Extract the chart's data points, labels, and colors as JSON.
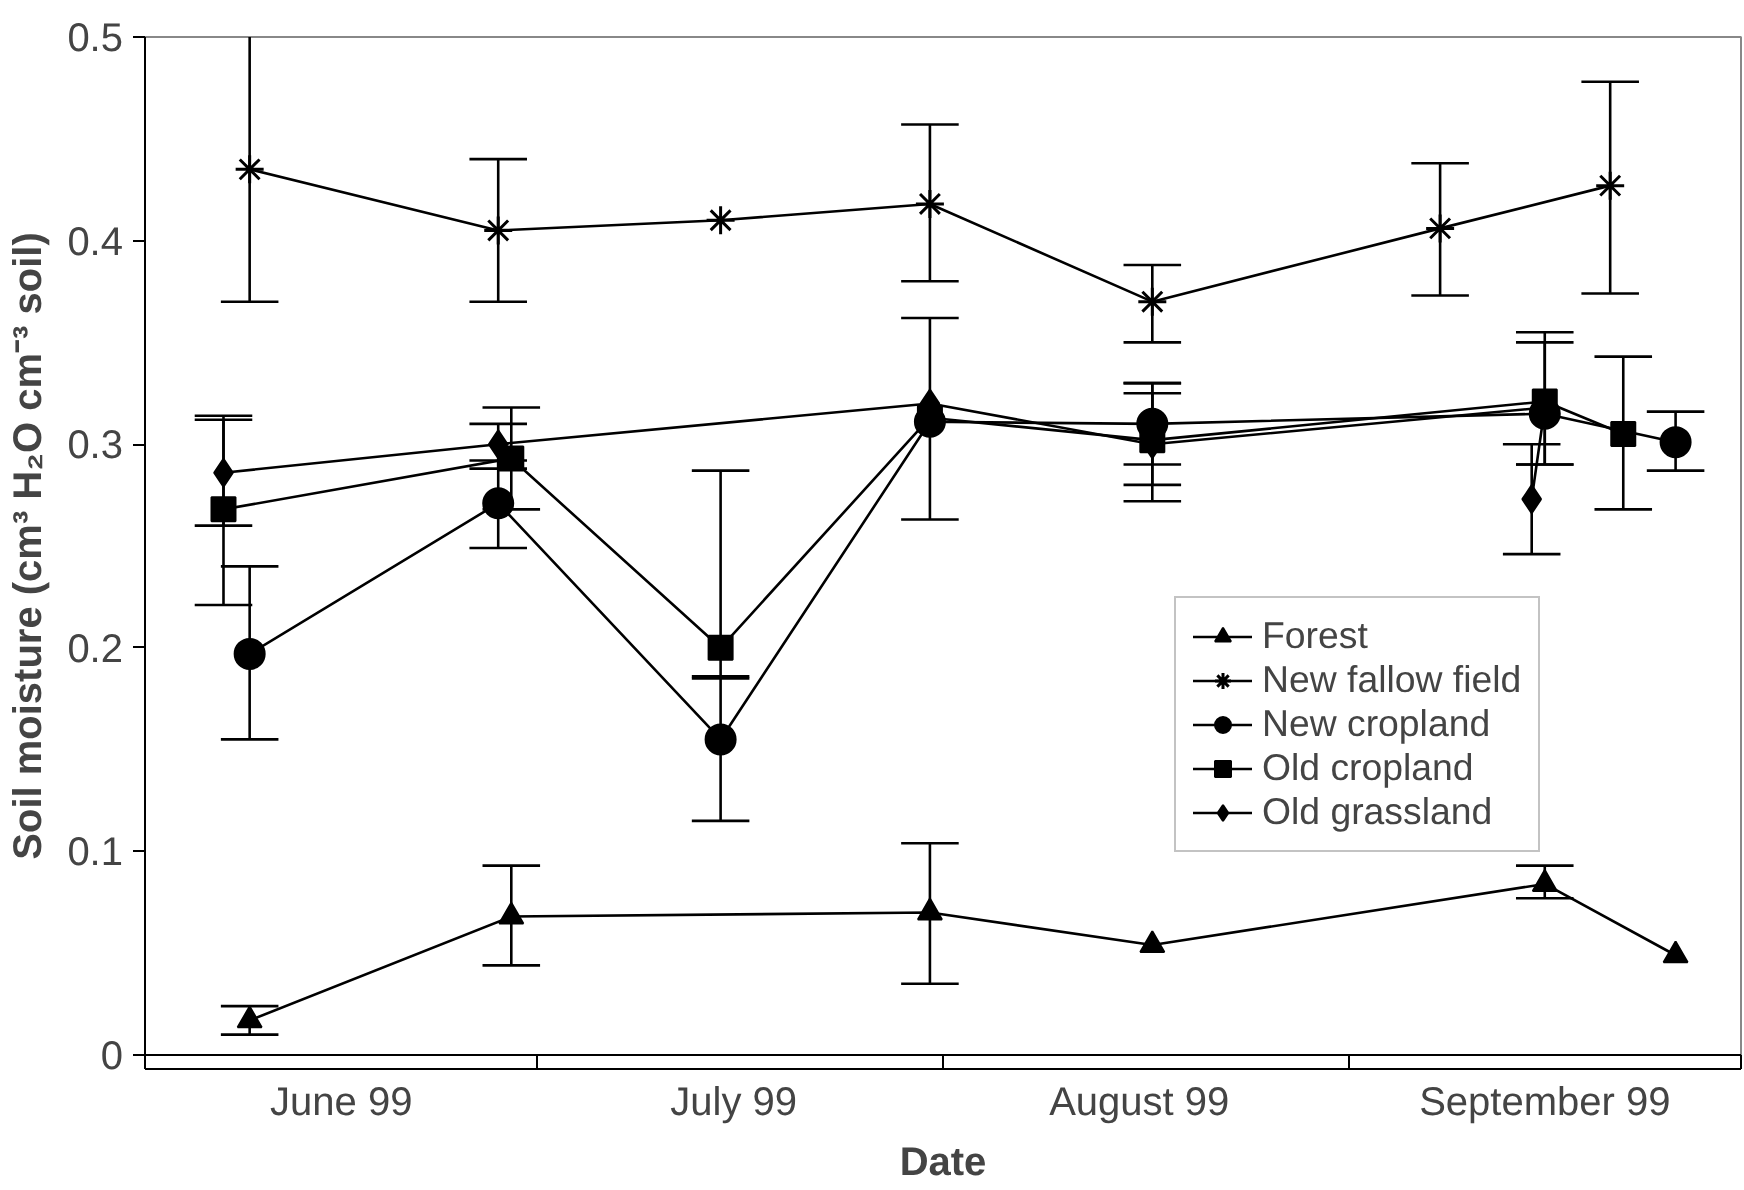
{
  "chart_data": {
    "type": "line",
    "xlabel": "Date",
    "ylabel": "Soil moisture (cm³ H₂O cm⁻³ soil)",
    "xlim": [
      "1999-06-01",
      "1999-10-01"
    ],
    "xticks": [
      {
        "value": "1999-06-01",
        "label": null
      },
      {
        "value": "1999-06-16",
        "label": "June 99"
      },
      {
        "value": "1999-07-01",
        "label": null
      },
      {
        "value": "1999-07-16",
        "label": "July 99"
      },
      {
        "value": "1999-08-01",
        "label": null
      },
      {
        "value": "1999-08-16",
        "label": "August 99"
      },
      {
        "value": "1999-09-01",
        "label": null
      },
      {
        "value": "1999-09-16",
        "label": "September 99"
      },
      {
        "value": "1999-10-01",
        "label": null
      }
    ],
    "ylim": [
      0,
      0.5
    ],
    "yticks": [
      0,
      0.1,
      0.2,
      0.3,
      0.4,
      0.5
    ],
    "grid": false,
    "legend": "right",
    "line_style": "solid",
    "series": [
      {
        "name": "Forest",
        "color": "#000000",
        "marker": "triangle",
        "x": [
          "1999-06-09",
          "1999-06-29",
          "1999-07-31",
          "1999-08-17",
          "1999-09-16",
          "1999-09-26"
        ],
        "values": [
          0.017,
          0.068,
          0.07,
          0.054,
          0.084,
          0.049
        ],
        "errors": [
          [
            0.01,
            0.024
          ],
          [
            0.044,
            0.093
          ],
          [
            0.035,
            0.104
          ],
          null,
          [
            0.077,
            0.093
          ],
          null
        ]
      },
      {
        "name": "New fallow field",
        "color": "#000000",
        "marker": "cross",
        "x": [
          "1999-06-09",
          "1999-06-28",
          "1999-07-15",
          "1999-07-31",
          "1999-08-17",
          "1999-09-08",
          "1999-09-21"
        ],
        "values": [
          0.435,
          0.405,
          0.41,
          0.418,
          0.37,
          0.406,
          0.427
        ],
        "errors": [
          [
            0.37,
            0.502
          ],
          [
            0.37,
            0.44
          ],
          null,
          [
            0.38,
            0.457
          ],
          [
            0.35,
            0.388
          ],
          [
            0.373,
            0.438
          ],
          [
            0.374,
            0.478
          ]
        ]
      },
      {
        "name": "New cropland",
        "color": "#000000",
        "marker": "circle",
        "x": [
          "1999-06-09",
          "1999-06-28",
          "1999-07-15",
          "1999-07-31",
          "1999-08-17",
          "1999-09-16",
          "1999-09-26"
        ],
        "values": [
          0.197,
          0.271,
          0.155,
          0.311,
          0.31,
          0.315,
          0.301
        ],
        "errors": [
          [
            0.155,
            0.24
          ],
          [
            0.249,
            0.292
          ],
          [
            0.115,
            0.186
          ],
          [
            0.263,
            0.362
          ],
          [
            0.29,
            0.33
          ],
          [
            0.29,
            0.35
          ],
          [
            0.287,
            0.316
          ]
        ]
      },
      {
        "name": "Old cropland",
        "color": "#000000",
        "marker": "square",
        "x": [
          "1999-06-07",
          "1999-06-29",
          "1999-07-15",
          "1999-07-31",
          "1999-08-17",
          "1999-09-16",
          "1999-09-22"
        ],
        "values": [
          0.268,
          0.293,
          0.2,
          0.313,
          0.302,
          0.321,
          0.305
        ],
        "errors": [
          [
            0.221,
            0.312
          ],
          [
            0.268,
            0.318
          ],
          [
            0.185,
            0.287
          ],
          null,
          [
            0.28,
            0.325
          ],
          [
            0.29,
            0.355
          ],
          [
            0.268,
            0.343
          ]
        ]
      },
      {
        "name": "Old grassland",
        "color": "#000000",
        "marker": "diamond",
        "x": [
          "1999-06-07",
          "1999-06-28",
          "1999-07-31",
          "1999-08-17",
          "1999-09-16",
          "1999-09-15"
        ],
        "values": [
          0.286,
          0.3,
          0.32,
          0.3,
          0.318,
          0.273
        ],
        "errors": [
          [
            0.26,
            0.314
          ],
          [
            0.288,
            0.31
          ],
          null,
          [
            0.272,
            0.33
          ],
          null,
          [
            0.246,
            0.3
          ]
        ]
      }
    ]
  }
}
